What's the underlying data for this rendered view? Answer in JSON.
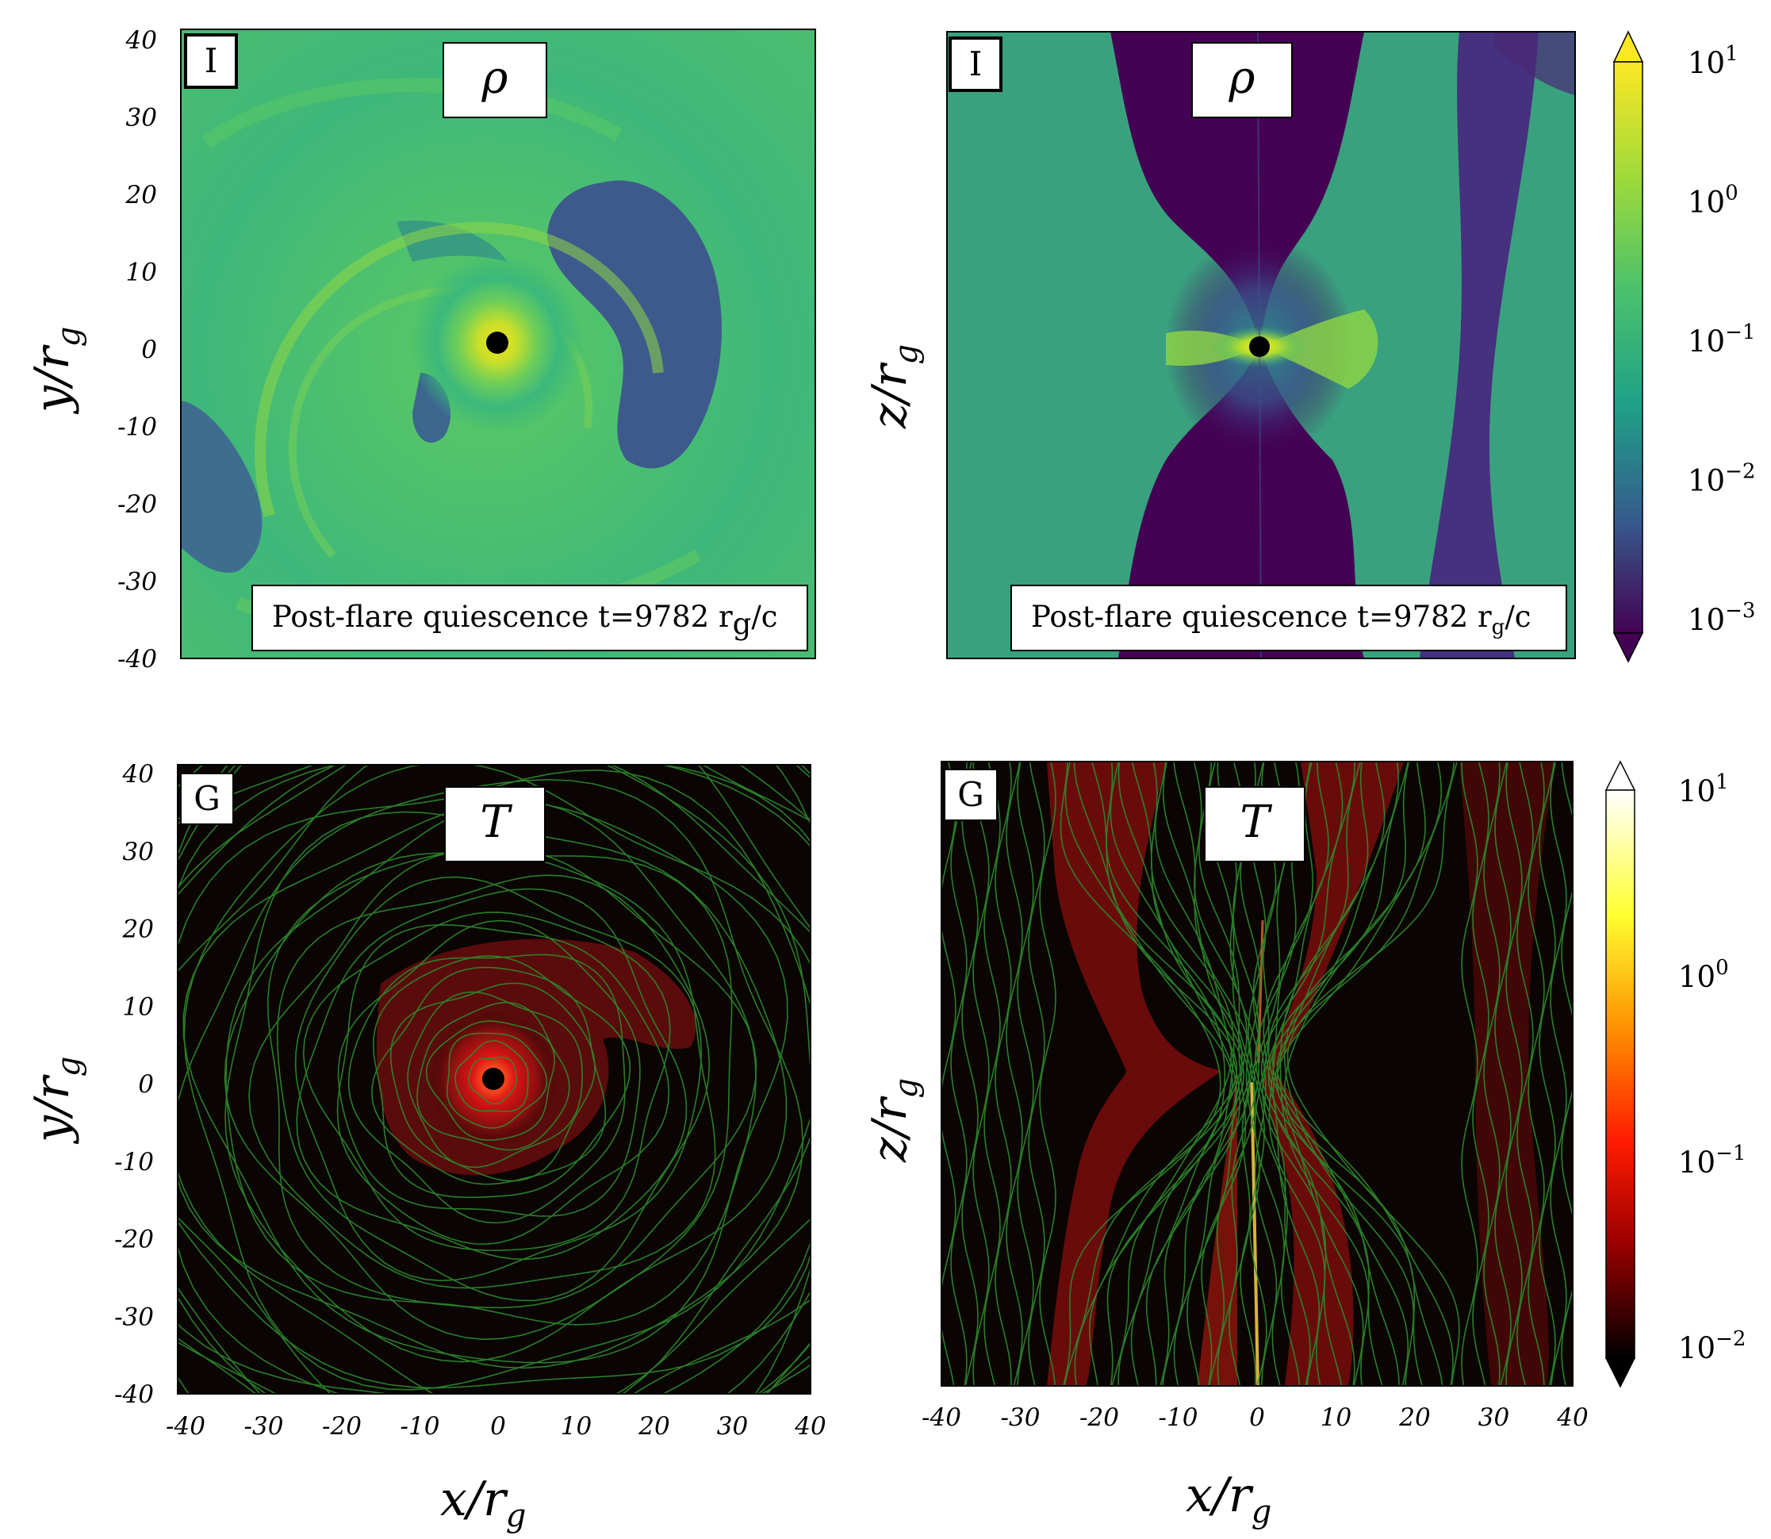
{
  "chart_data": [
    {
      "type": "heatmap",
      "panel_letter": "I",
      "quantity": "ρ",
      "annotation": "Post-flare quiescence t=9782 r",
      "annotation_sub": "g",
      "annotation_tail": "/c",
      "xlabel": "",
      "ylabel": "y/r",
      "ylabel_sub": "g",
      "xlim": [
        -40,
        40
      ],
      "ylim": [
        -40,
        40
      ],
      "yticks": [
        "40",
        "30",
        "20",
        "10",
        "0",
        "-10",
        "-20",
        "-30",
        "-40"
      ],
      "colormap": "viridis",
      "scale": "log"
    },
    {
      "type": "heatmap",
      "panel_letter": "I",
      "quantity": "ρ",
      "annotation": "Post-flare quiescence t=9782 r",
      "annotation_sub": "g",
      "annotation_tail": "/c",
      "xlabel": "",
      "ylabel": "z/r",
      "ylabel_sub": "g",
      "xlim": [
        -40,
        40
      ],
      "ylim": [
        -40,
        40
      ],
      "colormap": "viridis",
      "scale": "log",
      "colorbar": {
        "ticks": [
          {
            "base": "10",
            "exp": "1"
          },
          {
            "base": "10",
            "exp": "0"
          },
          {
            "base": "10",
            "exp": "−1"
          },
          {
            "base": "10",
            "exp": "−2"
          },
          {
            "base": "10",
            "exp": "−3"
          }
        ]
      }
    },
    {
      "type": "heatmap",
      "panel_letter": "G",
      "quantity": "T",
      "xlabel": "x/r",
      "xlabel_sub": "g",
      "ylabel": "y/r",
      "ylabel_sub": "g",
      "xlim": [
        -40,
        40
      ],
      "ylim": [
        -40,
        40
      ],
      "xticks": [
        "-40",
        "-30",
        "-20",
        "-10",
        "0",
        "10",
        "20",
        "30",
        "40"
      ],
      "yticks": [
        "40",
        "30",
        "20",
        "10",
        "0",
        "-10",
        "-20",
        "-30",
        "-40"
      ],
      "colormap": "hot",
      "scale": "log",
      "overlay": "streamlines"
    },
    {
      "type": "heatmap",
      "panel_letter": "G",
      "quantity": "T",
      "xlabel": "x/r",
      "xlabel_sub": "g",
      "ylabel": "z/r",
      "ylabel_sub": "g",
      "xlim": [
        -40,
        40
      ],
      "ylim": [
        -40,
        40
      ],
      "xticks": [
        "-40",
        "-30",
        "-20",
        "-10",
        "0",
        "10",
        "20",
        "30",
        "40"
      ],
      "colormap": "hot",
      "scale": "log",
      "overlay": "streamlines",
      "colorbar": {
        "ticks": [
          {
            "base": "10",
            "exp": "1"
          },
          {
            "base": "10",
            "exp": "0"
          },
          {
            "base": "10",
            "exp": "−1"
          },
          {
            "base": "10",
            "exp": "−2"
          }
        ]
      }
    }
  ]
}
